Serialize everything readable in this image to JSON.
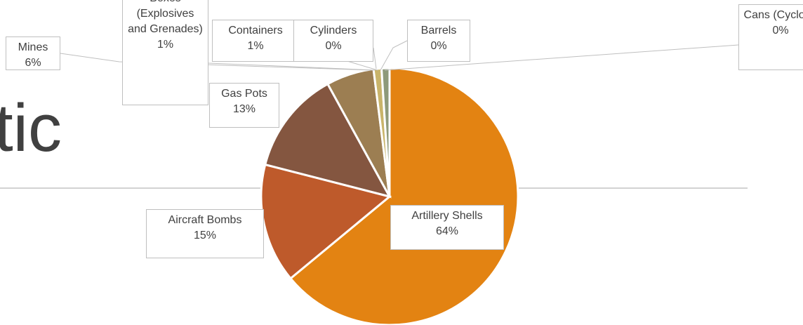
{
  "background_text": "tic",
  "chart_data": {
    "type": "pie",
    "categories": [
      "Artillery Shells",
      "Aircraft Bombs",
      "Gas Pots",
      "Mines",
      "Boxes (Explosives and Grenades)",
      "Containers",
      "Cylinders",
      "Barrels",
      "Cans (Cyclone"
    ],
    "values": [
      64,
      15,
      13,
      6,
      1,
      1,
      0,
      0,
      0
    ],
    "value_labels": [
      "64%",
      "15%",
      "13%",
      "6%",
      "1%",
      "1%",
      "0%",
      "0%",
      "0%"
    ],
    "colors": [
      "#e38312",
      "#be5a2b",
      "#845640",
      "#9c7e52",
      "#c9b46a",
      "#8e9a7a",
      "#a3a3a3",
      "#7f8f8f",
      "#d0c090"
    ]
  }
}
